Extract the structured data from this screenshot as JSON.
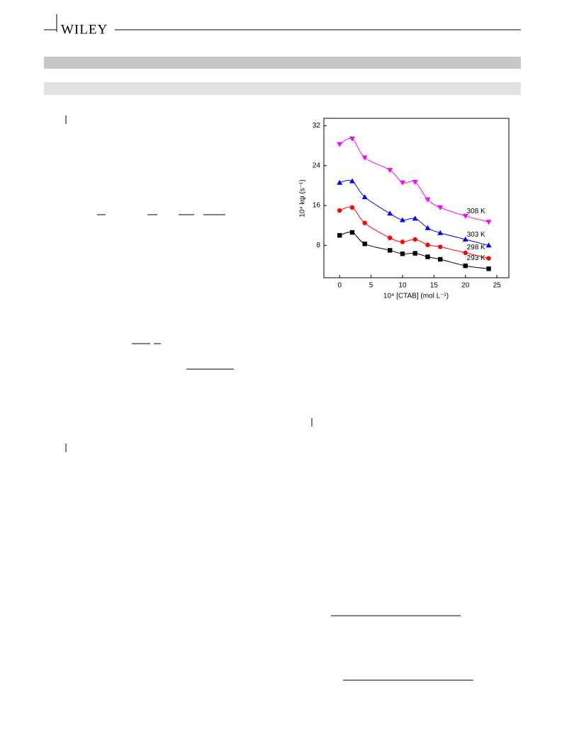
{
  "header": {
    "logo": "WILEY"
  },
  "chart_data": {
    "type": "line",
    "xlabel": "10⁴ [CTAB] (mol L⁻¹)",
    "ylabel": "10⁴ kψ (s⁻¹)",
    "x": [
      0,
      2,
      4,
      8,
      10,
      12,
      14,
      16,
      20,
      23.7
    ],
    "series": [
      {
        "name": "293 K",
        "color": "#000000",
        "marker": "square",
        "values": [
          10.0,
          10.6,
          8.3,
          7.0,
          6.3,
          6.4,
          5.7,
          5.2,
          3.9,
          3.3
        ]
      },
      {
        "name": "298 K",
        "color": "#ff0000",
        "marker": "circle",
        "values": [
          15.0,
          15.6,
          12.5,
          9.5,
          8.7,
          9.2,
          8.1,
          7.7,
          6.5,
          5.4
        ]
      },
      {
        "name": "303 K",
        "color": "#0000ff",
        "marker": "triangle-up",
        "values": [
          20.6,
          20.9,
          17.7,
          14.4,
          13.1,
          13.4,
          11.5,
          10.5,
          9.2,
          8.0
        ]
      },
      {
        "name": "308 K",
        "color": "#ff00ff",
        "marker": "triangle-down",
        "values": [
          28.3,
          29.4,
          25.6,
          23.1,
          20.6,
          20.7,
          17.2,
          15.6,
          13.9,
          12.7
        ]
      }
    ],
    "xlim": [
      -2.5,
      26.9
    ],
    "ylim": [
      1.5,
      33.5
    ],
    "xticks": [
      0,
      5,
      10,
      15,
      20,
      25
    ],
    "yticks": [
      8,
      16,
      24,
      32
    ],
    "smooth": true
  }
}
